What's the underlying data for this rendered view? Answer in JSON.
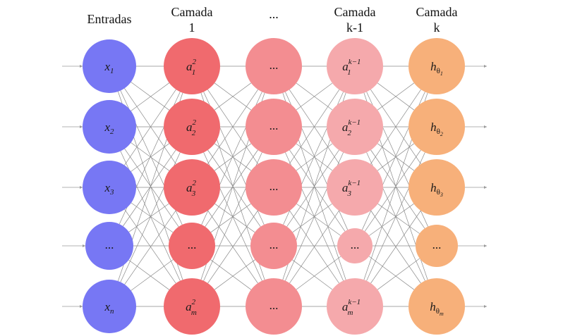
{
  "headers": [
    {
      "lines": [
        "Entradas"
      ]
    },
    {
      "lines": [
        "Camada",
        "1"
      ]
    },
    {
      "lines": [
        "..."
      ]
    },
    {
      "lines": [
        "Camada",
        "k-1"
      ]
    },
    {
      "lines": [
        "Camada",
        "k"
      ]
    }
  ],
  "colors": {
    "input": "#7777f4",
    "layer1": "#f06a6e",
    "hidden_mid": "#f38d91",
    "layer_km1": "#f5a9ac",
    "output": "#f7b07a",
    "edge": "#8a8a8a"
  },
  "layers": [
    {
      "nodes": [
        {
          "base": "x",
          "sub": "1"
        },
        {
          "base": "x",
          "sub": "2"
        },
        {
          "base": "x",
          "sub": "3"
        },
        {
          "text": "..."
        },
        {
          "base": "x",
          "sub": "n"
        }
      ]
    },
    {
      "nodes": [
        {
          "base": "a",
          "sub": "1",
          "sup": "2"
        },
        {
          "base": "a",
          "sub": "2",
          "sup": "2"
        },
        {
          "base": "a",
          "sub": "3",
          "sup": "2"
        },
        {
          "text": "..."
        },
        {
          "base": "a",
          "sub": "m",
          "sup": "2"
        }
      ]
    },
    {
      "nodes": [
        {
          "text": "..."
        },
        {
          "text": "..."
        },
        {
          "text": "..."
        },
        {
          "text": "..."
        },
        {
          "text": "..."
        }
      ]
    },
    {
      "nodes": [
        {
          "base": "a",
          "sub": "1",
          "sup": "k−1"
        },
        {
          "base": "a",
          "sub": "2",
          "sup": "k−1"
        },
        {
          "base": "a",
          "sub": "3",
          "sup": "k−1"
        },
        {
          "text": "..."
        },
        {
          "base": "a",
          "sub": "m",
          "sup": "k−1"
        }
      ]
    },
    {
      "nodes": [
        {
          "base": "h",
          "sub": "θ",
          "subsub": "1"
        },
        {
          "base": "h",
          "sub": "θ",
          "subsub": "2"
        },
        {
          "base": "h",
          "sub": "θ",
          "subsub": "3"
        },
        {
          "text": "..."
        },
        {
          "base": "h",
          "sub": "θ",
          "subsub": "m"
        }
      ]
    }
  ]
}
